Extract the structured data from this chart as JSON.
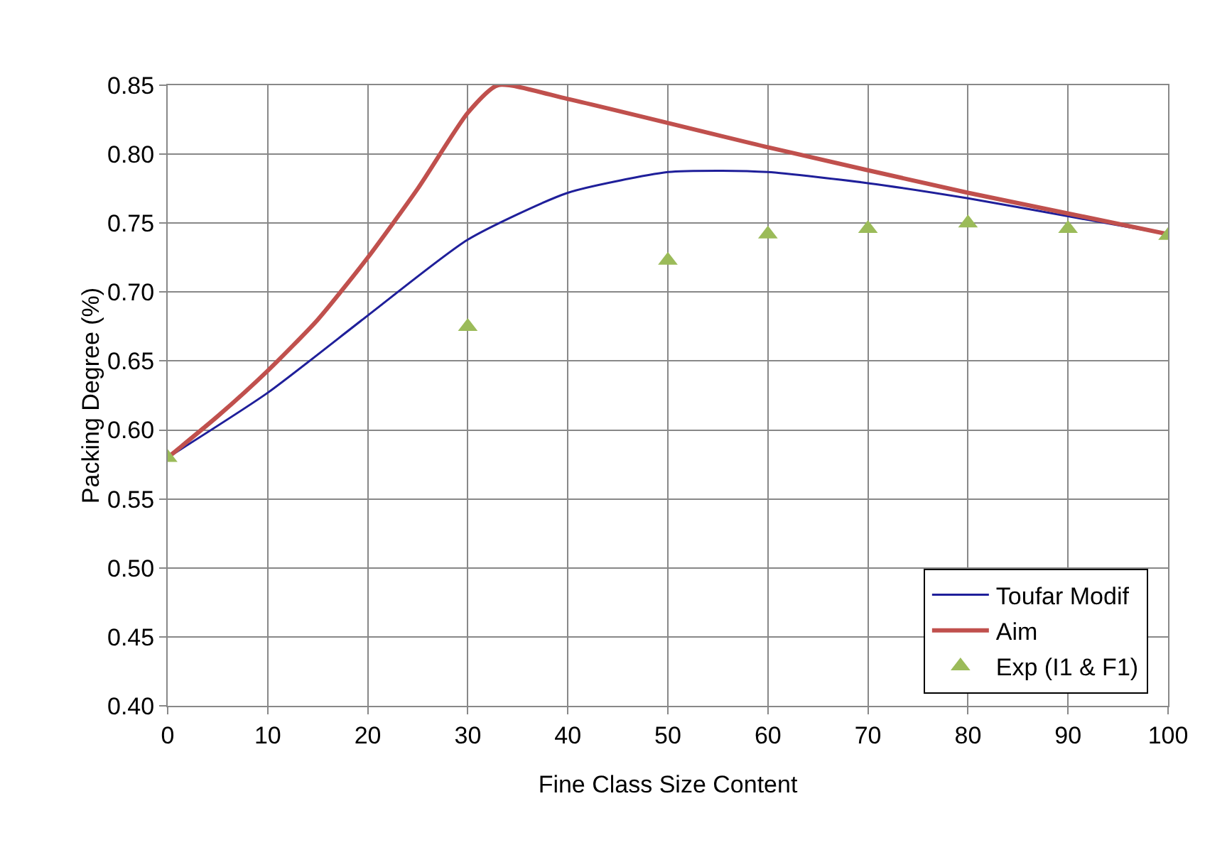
{
  "chart_data": {
    "type": "line",
    "xlabel": "Fine Class Size Content",
    "ylabel": "Packing Degree (%)",
    "xlim": [
      0,
      100
    ],
    "xticks": [
      0,
      10,
      20,
      30,
      40,
      50,
      60,
      70,
      80,
      90,
      100
    ],
    "ylim": [
      0.4,
      0.85
    ],
    "yticks": [
      {
        "value": 0.4,
        "label": "0.40"
      },
      {
        "value": 0.45,
        "label": "0.45"
      },
      {
        "value": 0.5,
        "label": "0.50"
      },
      {
        "value": 0.55,
        "label": "0.55"
      },
      {
        "value": 0.6,
        "label": "0.60"
      },
      {
        "value": 0.65,
        "label": "0.65"
      },
      {
        "value": 0.7,
        "label": "0.70"
      },
      {
        "value": 0.75,
        "label": "0.75"
      },
      {
        "value": 0.8,
        "label": "0.80"
      },
      {
        "value": 0.85,
        "label": "0.85"
      }
    ],
    "grid": true,
    "legend": "bottom right",
    "series": [
      {
        "name": "Toufar Modif",
        "color": "#1f1f9a",
        "x": [
          0,
          10,
          20,
          30,
          40,
          50,
          55,
          60,
          70,
          80,
          90,
          100
        ],
        "values": [
          0.58,
          0.627,
          0.683,
          0.738,
          0.772,
          0.787,
          0.788,
          0.787,
          0.779,
          0.768,
          0.755,
          0.742
        ]
      },
      {
        "name": "Aim",
        "color": "#c0504d",
        "x": [
          0,
          5,
          10,
          15,
          20,
          25,
          30,
          33,
          40,
          60,
          80,
          100
        ],
        "values": [
          0.58,
          0.61,
          0.643,
          0.68,
          0.725,
          0.775,
          0.83,
          0.85,
          0.84,
          0.805,
          0.772,
          0.742
        ]
      },
      {
        "name": "Exp (I1 & F1)",
        "type": "scatter",
        "marker": "triangle",
        "color": "#9bbb59",
        "x": [
          0,
          30,
          50,
          60,
          70,
          80,
          90,
          100
        ],
        "values": [
          0.58,
          0.675,
          0.723,
          0.742,
          0.746,
          0.75,
          0.746,
          0.741
        ]
      }
    ]
  }
}
